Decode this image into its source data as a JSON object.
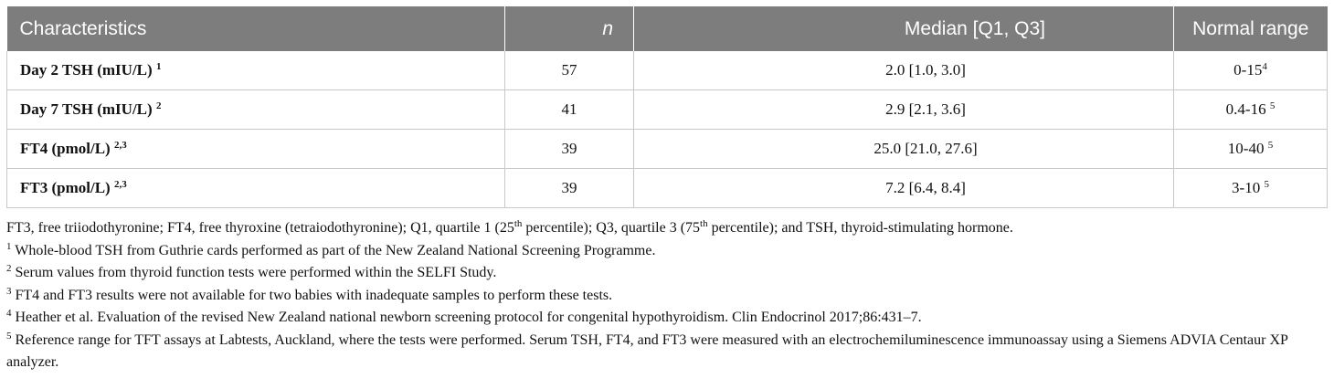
{
  "table": {
    "headers": [
      "Characteristics",
      "n",
      "Median [Q1, Q3]",
      "Normal range"
    ],
    "rows": [
      {
        "label": "Day 2 TSH (mIU/L)",
        "label_sup": "1",
        "n": "57",
        "median": "2.0 [1.0, 3.0]",
        "range": "0-15",
        "range_sup": "4"
      },
      {
        "label": "Day 7 TSH (mIU/L)",
        "label_sup": "2",
        "n": "41",
        "median": "2.9 [2.1, 3.6]",
        "range": "0.4-16 ",
        "range_sup": "5"
      },
      {
        "label": "FT4 (pmol/L)",
        "label_sup": "2,3",
        "n": "39",
        "median": "25.0 [21.0, 27.6]",
        "range": "10-40 ",
        "range_sup": "5"
      },
      {
        "label": "FT3 (pmol/L)",
        "label_sup": "2,3",
        "n": "39",
        "median": "7.2 [6.4, 8.4]",
        "range": "3-10 ",
        "range_sup": "5"
      }
    ]
  },
  "notes": {
    "abbrev": {
      "p1": "FT3, free triiodothyronine; FT4, free thyroxine (tetraiodothyronine); Q1, quartile 1 (25",
      "s1": "th",
      "p2": " percentile); Q3, quartile 3 (75",
      "s2": "th",
      "p3": " percentile); and TSH, thyroid-stimulating hormone."
    },
    "footnotes": [
      {
        "mark": "1",
        "text": " Whole-blood TSH from Guthrie cards performed as part of the New Zealand National Screening Programme."
      },
      {
        "mark": "2",
        "text": " Serum values from thyroid function tests were performed within the SELFI Study."
      },
      {
        "mark": "3",
        "text": " FT4 and FT3 results were not available for two babies with inadequate samples to perform these tests."
      },
      {
        "mark": "4",
        "text": " Heather et al. Evaluation of the revised New Zealand national newborn screening protocol for congenital hypothyroidism. Clin Endocrinol 2017;86:431–7."
      },
      {
        "mark": "5",
        "text": " Reference range for TFT assays at Labtests, Auckland, where the tests were performed. Serum TSH, FT4, and FT3 were measured with an electrochemiluminescence immunoassay using a Siemens ADVIA Centaur XP analyzer."
      }
    ]
  }
}
